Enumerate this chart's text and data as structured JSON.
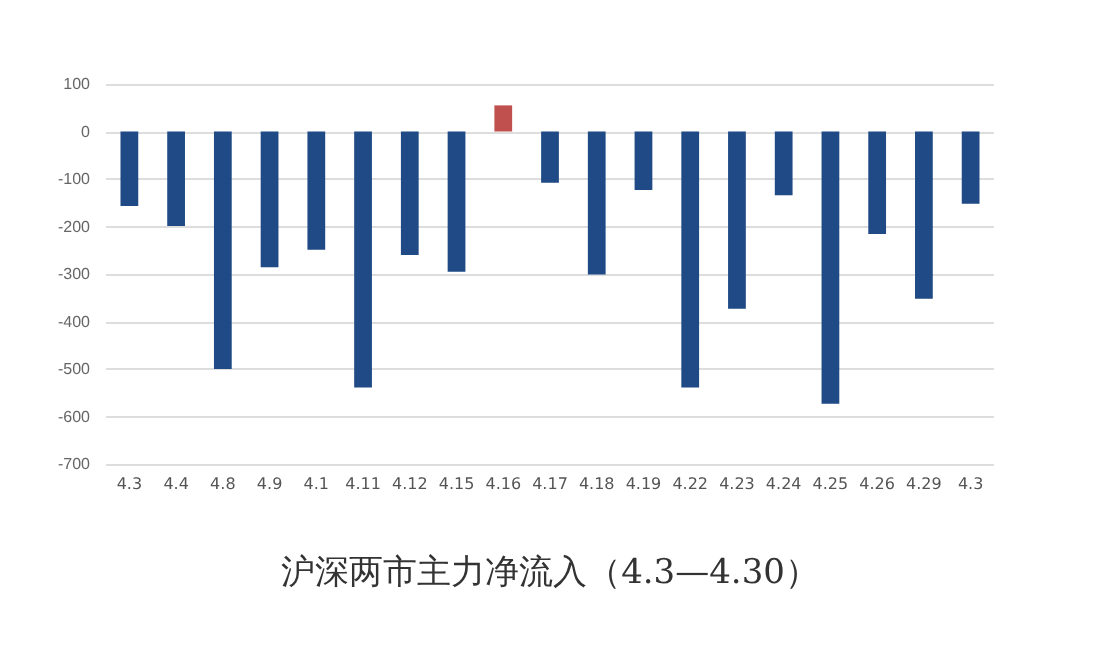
{
  "chart_data": {
    "type": "bar",
    "title": "沪深两市主力净流入（4.3—4.30）",
    "categories": [
      "4.3",
      "4.4",
      "4.8",
      "4.9",
      "4.1",
      "4.11",
      "4.12",
      "4.15",
      "4.16",
      "4.17",
      "4.18",
      "4.19",
      "4.22",
      "4.23",
      "4.24",
      "4.25",
      "4.26",
      "4.29",
      "4.3"
    ],
    "values": [
      -157,
      -199,
      -500,
      -286,
      -249,
      -539,
      -260,
      -295,
      55,
      -108,
      -301,
      -123,
      -539,
      -373,
      -134,
      -573,
      -216,
      -352,
      -152
    ],
    "colors": [
      "#1f4a85",
      "#1f4a85",
      "#1f4a85",
      "#1f4a85",
      "#1f4a85",
      "#1f4a85",
      "#1f4a85",
      "#1f4a85",
      "#c0504d",
      "#1f4a85",
      "#1f4a85",
      "#1f4a85",
      "#1f4a85",
      "#1f4a85",
      "#1f4a85",
      "#1f4a85",
      "#1f4a85",
      "#1f4a85",
      "#1f4a85"
    ],
    "ylim": [
      -700,
      100
    ],
    "yticks": [
      -700,
      -600,
      -500,
      -400,
      -300,
      -200,
      -100,
      0,
      100
    ],
    "grid": "y"
  }
}
